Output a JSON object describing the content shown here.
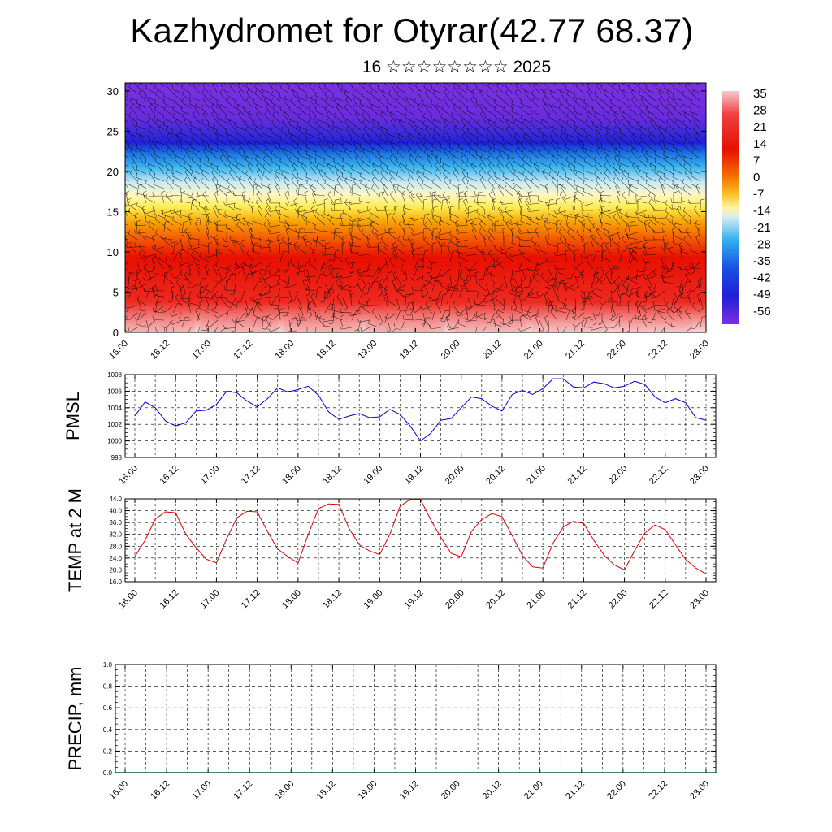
{
  "title": "Kazhydromet for Otyrar(42.77 68.37)",
  "subtitle": "16 ☆☆☆☆☆☆☆☆ 2025",
  "colors": {
    "pmsl_line": "#0000dd",
    "temp_line": "#dd0000",
    "wind_barb": "#000000",
    "grid": "#000000"
  },
  "chart_data": [
    {
      "id": "temperature-height",
      "type": "heatmap",
      "ylim": [
        0,
        31
      ],
      "y_ticks": [
        "0",
        "5",
        "10",
        "15",
        "20",
        "25",
        "30"
      ],
      "x_ticks": [
        "16.00",
        "16.12",
        "17.00",
        "17.12",
        "18.00",
        "18.12",
        "19.00",
        "19.12",
        "20.00",
        "20.12",
        "21.00",
        "21.12",
        "22.00",
        "22.12",
        "23.00"
      ],
      "colorbar_labels": [
        "35",
        "28",
        "21",
        "14",
        "7",
        "0",
        "-7",
        "-14",
        "-21",
        "-28",
        "-35",
        "-42",
        "-49",
        "-56"
      ],
      "colorbar_range": [
        -60,
        38
      ]
    },
    {
      "id": "pmsl",
      "type": "line",
      "ylabel": "PMSL",
      "ylim": [
        998,
        1008
      ],
      "y_ticks": [
        "1008",
        "1006",
        "1004",
        "1002",
        "1000",
        "998"
      ],
      "x_ticks": [
        "16.00",
        "16.12",
        "17.00",
        "17.12",
        "18.00",
        "18.12",
        "19.00",
        "19.12",
        "20.00",
        "20.12",
        "21.00",
        "21.12",
        "22.00",
        "22.12",
        "23.00"
      ],
      "x_hours": [
        0,
        3,
        6,
        9,
        12,
        15,
        18,
        21,
        24,
        27,
        30,
        33,
        36,
        39,
        42,
        45,
        48,
        51,
        54,
        57,
        60,
        63,
        66,
        69,
        72,
        75,
        78,
        81,
        84,
        87,
        90,
        93,
        96,
        99,
        102,
        105,
        108,
        111,
        114,
        117,
        120,
        123,
        126,
        129,
        132,
        135,
        138,
        141,
        144,
        147,
        150,
        153,
        156,
        159,
        162,
        165,
        168
      ],
      "values": [
        1003.0,
        1004.7,
        1004.0,
        1002.4,
        1001.8,
        1002.2,
        1003.6,
        1003.7,
        1004.4,
        1006.0,
        1005.8,
        1004.8,
        1004.1,
        1005.1,
        1006.4,
        1005.9,
        1006.2,
        1006.6,
        1005.5,
        1003.5,
        1002.6,
        1003.0,
        1003.3,
        1002.8,
        1002.9,
        1003.8,
        1003.2,
        1001.8,
        1000.0,
        1000.9,
        1002.5,
        1002.7,
        1004.0,
        1005.3,
        1005.1,
        1004.2,
        1003.6,
        1005.6,
        1006.1,
        1005.6,
        1006.3,
        1007.5,
        1007.5,
        1006.5,
        1006.4,
        1007.1,
        1006.9,
        1006.4,
        1006.6,
        1007.2,
        1006.8,
        1005.3,
        1004.6,
        1005.1,
        1004.6,
        1002.8,
        1002.5
      ]
    },
    {
      "id": "temp2m",
      "type": "line",
      "ylabel": "TEMP at 2 M",
      "ylim": [
        16,
        44
      ],
      "y_ticks": [
        "44.0",
        "40.0",
        "36.0",
        "32.0",
        "28.0",
        "24.0",
        "20.0",
        "16.0"
      ],
      "x_ticks": [
        "16.00",
        "16.12",
        "17.00",
        "17.12",
        "18.00",
        "18.12",
        "19.00",
        "19.12",
        "20.00",
        "20.12",
        "21.00",
        "21.12",
        "22.00",
        "22.12",
        "23.00"
      ],
      "x_hours": [
        0,
        3,
        6,
        9,
        12,
        15,
        18,
        21,
        24,
        27,
        30,
        33,
        36,
        39,
        42,
        45,
        48,
        51,
        54,
        57,
        60,
        63,
        66,
        69,
        72,
        75,
        78,
        81,
        84,
        87,
        90,
        93,
        96,
        99,
        102,
        105,
        108,
        111,
        114,
        117,
        120,
        123,
        126,
        129,
        132,
        135,
        138,
        141,
        144,
        147,
        150,
        153,
        156,
        159,
        162,
        165,
        168
      ],
      "values": [
        24.5,
        30.0,
        37.2,
        39.6,
        39.3,
        32.0,
        27.5,
        23.6,
        22.4,
        30.5,
        37.6,
        39.8,
        39.6,
        33.0,
        27.0,
        24.5,
        22.3,
        32.0,
        40.7,
        42.3,
        42.1,
        34.0,
        28.5,
        26.4,
        25.2,
        32.0,
        41.5,
        43.8,
        43.8,
        37.0,
        31.0,
        25.6,
        24.4,
        33.0,
        37.0,
        39.0,
        38.0,
        31.5,
        24.8,
        21.0,
        20.6,
        29.0,
        34.5,
        36.4,
        35.7,
        30.0,
        25.0,
        21.7,
        20.0,
        26.5,
        32.5,
        35.2,
        33.6,
        28.5,
        23.5,
        20.6,
        18.6
      ]
    },
    {
      "id": "precip",
      "type": "line",
      "ylabel": "PRECIP, mm",
      "ylim": [
        0,
        1
      ],
      "y_ticks": [
        "1.0",
        "0.8",
        "0.6",
        "0.4",
        "0.2",
        "0.0"
      ],
      "x_ticks": [
        "16.00",
        "16.12",
        "17.00",
        "17.12",
        "18.00",
        "18.12",
        "19.00",
        "19.12",
        "20.00",
        "20.12",
        "21.00",
        "21.12",
        "22.00",
        "22.12",
        "23.00"
      ],
      "values": []
    }
  ]
}
